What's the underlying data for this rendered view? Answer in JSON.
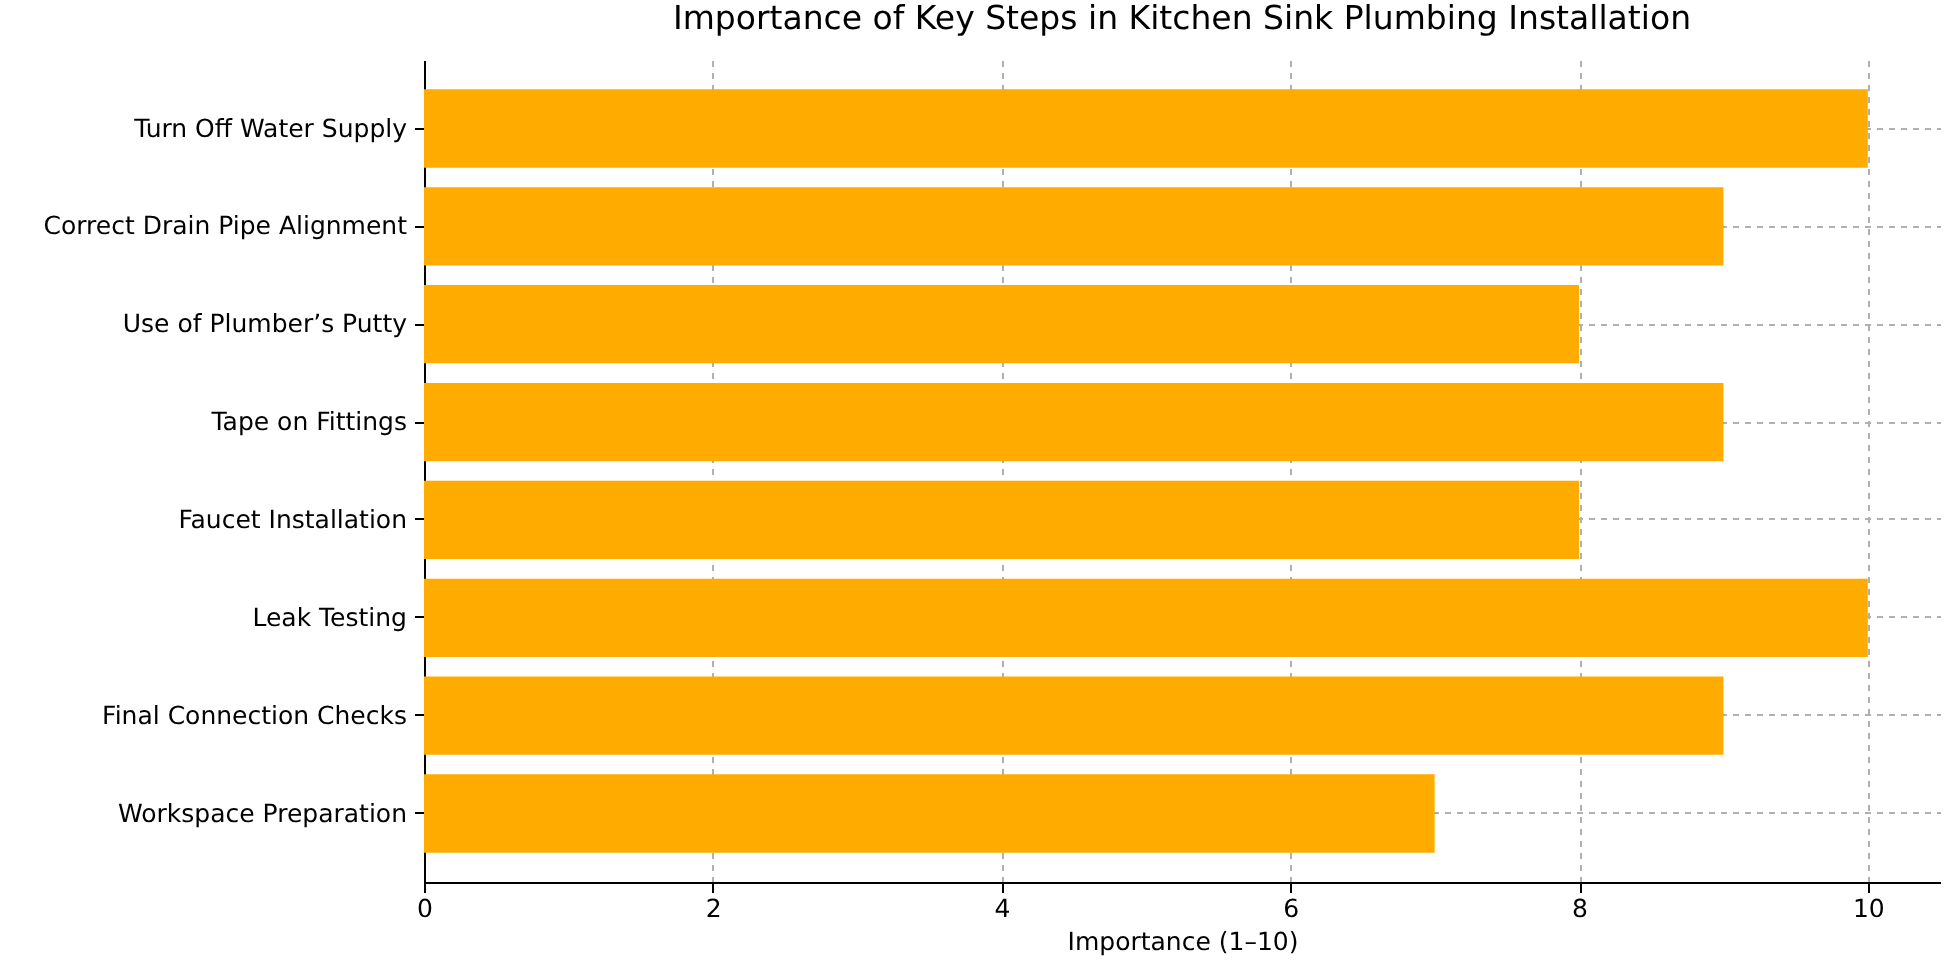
{
  "chart_data": {
    "type": "bar",
    "orientation": "horizontal",
    "title": "Importance of Key Steps in Kitchen Sink Plumbing Installation",
    "xlabel": "Importance (1–10)",
    "categories": [
      "Turn Off Water Supply",
      "Correct Drain Pipe Alignment",
      "Use of Plumber’s Putty",
      "Tape on Fittings",
      "Faucet Installation",
      "Leak Testing",
      "Final Connection Checks",
      "Workspace Preparation"
    ],
    "values": [
      10,
      9,
      8,
      9,
      8,
      10,
      9,
      7
    ],
    "color": "#ffab00",
    "xlim": [
      0,
      10.5
    ],
    "xticks": [
      0,
      2,
      4,
      6,
      8,
      10
    ],
    "grid": true
  }
}
